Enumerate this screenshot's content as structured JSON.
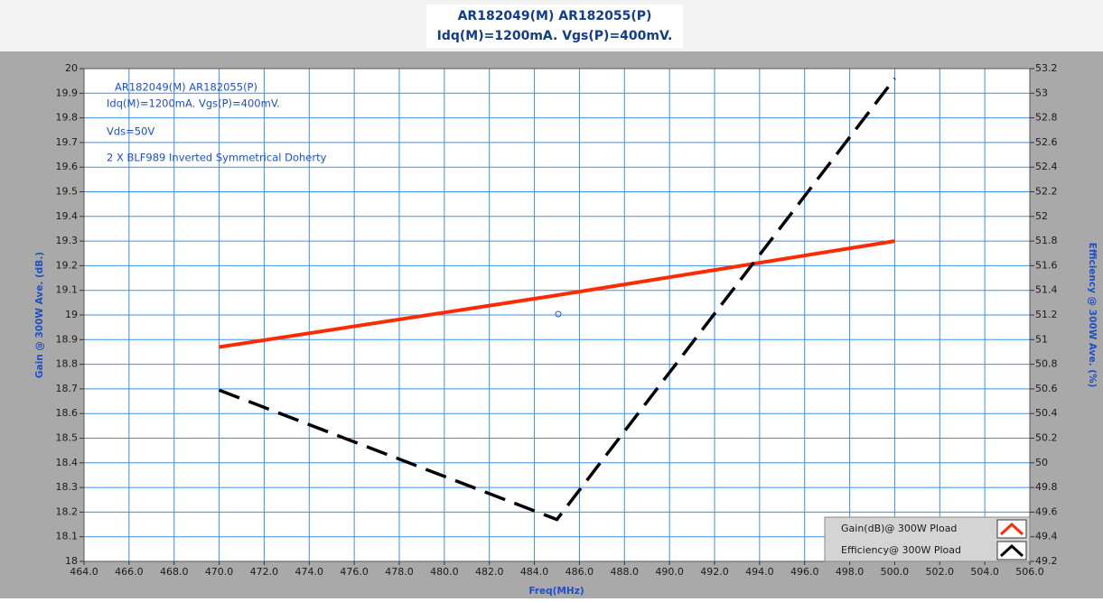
{
  "chart_data": {
    "type": "line",
    "title": [
      "AR182049(M) AR182055(P)",
      "Idq(M)=1200mA. Vgs(P)=400mV."
    ],
    "x_label": "Freq(MHz)",
    "y_label": "Gain @ 300W Ave. (dB.)",
    "y2_label": "Efficiency @ 300W Ave. (%)",
    "annotations": [
      "AR182049(M) AR182055(P)",
      "Idq(M)=1200mA. Vgs(P)=400mV.",
      "Vds=50V",
      "2 X BLF989 Inverted Symmetrical Doherty"
    ],
    "x": [
      470,
      485,
      500
    ],
    "series": [
      {
        "name": "Gain(dB)@  300W Pload",
        "color": "#ff2a00",
        "values": [
          18.87,
          19.08,
          19.3
        ]
      },
      {
        "name": "Efficiency@ 300W Pload",
        "color": "#000000",
        "axis": "y2",
        "values": [
          50.59,
          49.54,
          53.12
        ]
      }
    ],
    "xlim": [
      464,
      506
    ],
    "xticks": [
      {
        "value": 464,
        "label": "464.0"
      },
      {
        "value": 466,
        "label": "466.0"
      },
      {
        "value": 468,
        "label": "468.0"
      },
      {
        "value": 470,
        "label": "470.0"
      },
      {
        "value": 472,
        "label": "472.0"
      },
      {
        "value": 474,
        "label": "474.0"
      },
      {
        "value": 476,
        "label": "476.0"
      },
      {
        "value": 478,
        "label": "478.0"
      },
      {
        "value": 480,
        "label": "480.0"
      },
      {
        "value": 482,
        "label": "482.0"
      },
      {
        "value": 484,
        "label": "484.0"
      },
      {
        "value": 486,
        "label": "486.0"
      },
      {
        "value": 488,
        "label": "488.0"
      },
      {
        "value": 490,
        "label": "490.0"
      },
      {
        "value": 492,
        "label": "492.0"
      },
      {
        "value": 494,
        "label": "494.0"
      },
      {
        "value": 496,
        "label": "496.0"
      },
      {
        "value": 498,
        "label": "498.0"
      },
      {
        "value": 500,
        "label": "500.0"
      },
      {
        "value": 502,
        "label": "502.0"
      },
      {
        "value": 504,
        "label": "504.0"
      },
      {
        "value": 506,
        "label": "506.0"
      }
    ],
    "ylim": [
      18,
      20
    ],
    "yticks": [
      18,
      18.1,
      18.2,
      18.3,
      18.4,
      18.5,
      18.6,
      18.7,
      18.8,
      18.9,
      19,
      19.1,
      19.2,
      19.3,
      19.4,
      19.5,
      19.6,
      19.7,
      19.8,
      19.9,
      20
    ],
    "y2lim": [
      49.2,
      53.2
    ],
    "y2ticks": [
      49.2,
      49.4,
      49.6,
      49.8,
      50,
      50.2,
      50.4,
      50.6,
      50.8,
      51,
      51.2,
      51.4,
      51.6,
      51.8,
      52,
      52.2,
      52.4,
      52.6,
      52.8,
      53,
      53.2
    ],
    "grid": true,
    "legend": "lower right"
  }
}
